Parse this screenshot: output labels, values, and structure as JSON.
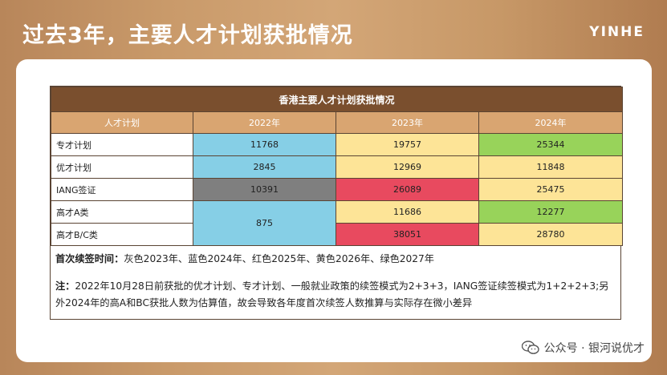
{
  "slide_title": "过去3年，主要人才计划获批情况",
  "logo_text": "YINHE",
  "table": {
    "caption": "香港主要人才计划获批情况",
    "headers": [
      "人才计划",
      "2022年",
      "2023年",
      "2024年"
    ],
    "rows": [
      {
        "name": "专才计划",
        "v2022": "11768",
        "v2023": "19757",
        "v2024": "25344"
      },
      {
        "name": "优才计划",
        "v2022": "2845",
        "v2023": "12969",
        "v2024": "11848"
      },
      {
        "name": "IANG签证",
        "v2022": "10391",
        "v2023": "26089",
        "v2024": "25475"
      },
      {
        "name": "高才A类",
        "v2022": "875",
        "v2023": "11686",
        "v2024": "12277"
      },
      {
        "name": "高才B/C类",
        "v2023": "38051",
        "v2024": "28780"
      }
    ]
  },
  "colors": {
    "blue": "#86cfe6",
    "yellow": "#fde497",
    "green": "#98d35a",
    "gray": "#7f7f7f",
    "red": "#e84a5f",
    "caption_bg": "#7a4f2e",
    "header_bg": "#d9a571"
  },
  "notes": {
    "renewal_label": "首次续签时间：",
    "renewal_text": "灰色2023年、蓝色2024年、红色2025年、黄色2026年、绿色2027年",
    "note_label": "注：",
    "note_text": "2022年10月28日前获批的优才计划、专才计划、一般就业政策的续签模式为2+3+3，IANG签证续签模式为1+2+2+3;另外2024年的高A和BC获批人数为估算值，故会导致各年度首次续签人数推算与实际存在微小差异"
  },
  "footer": {
    "icon": "wechat-icon",
    "text": "公众号 · 银河说优才"
  }
}
